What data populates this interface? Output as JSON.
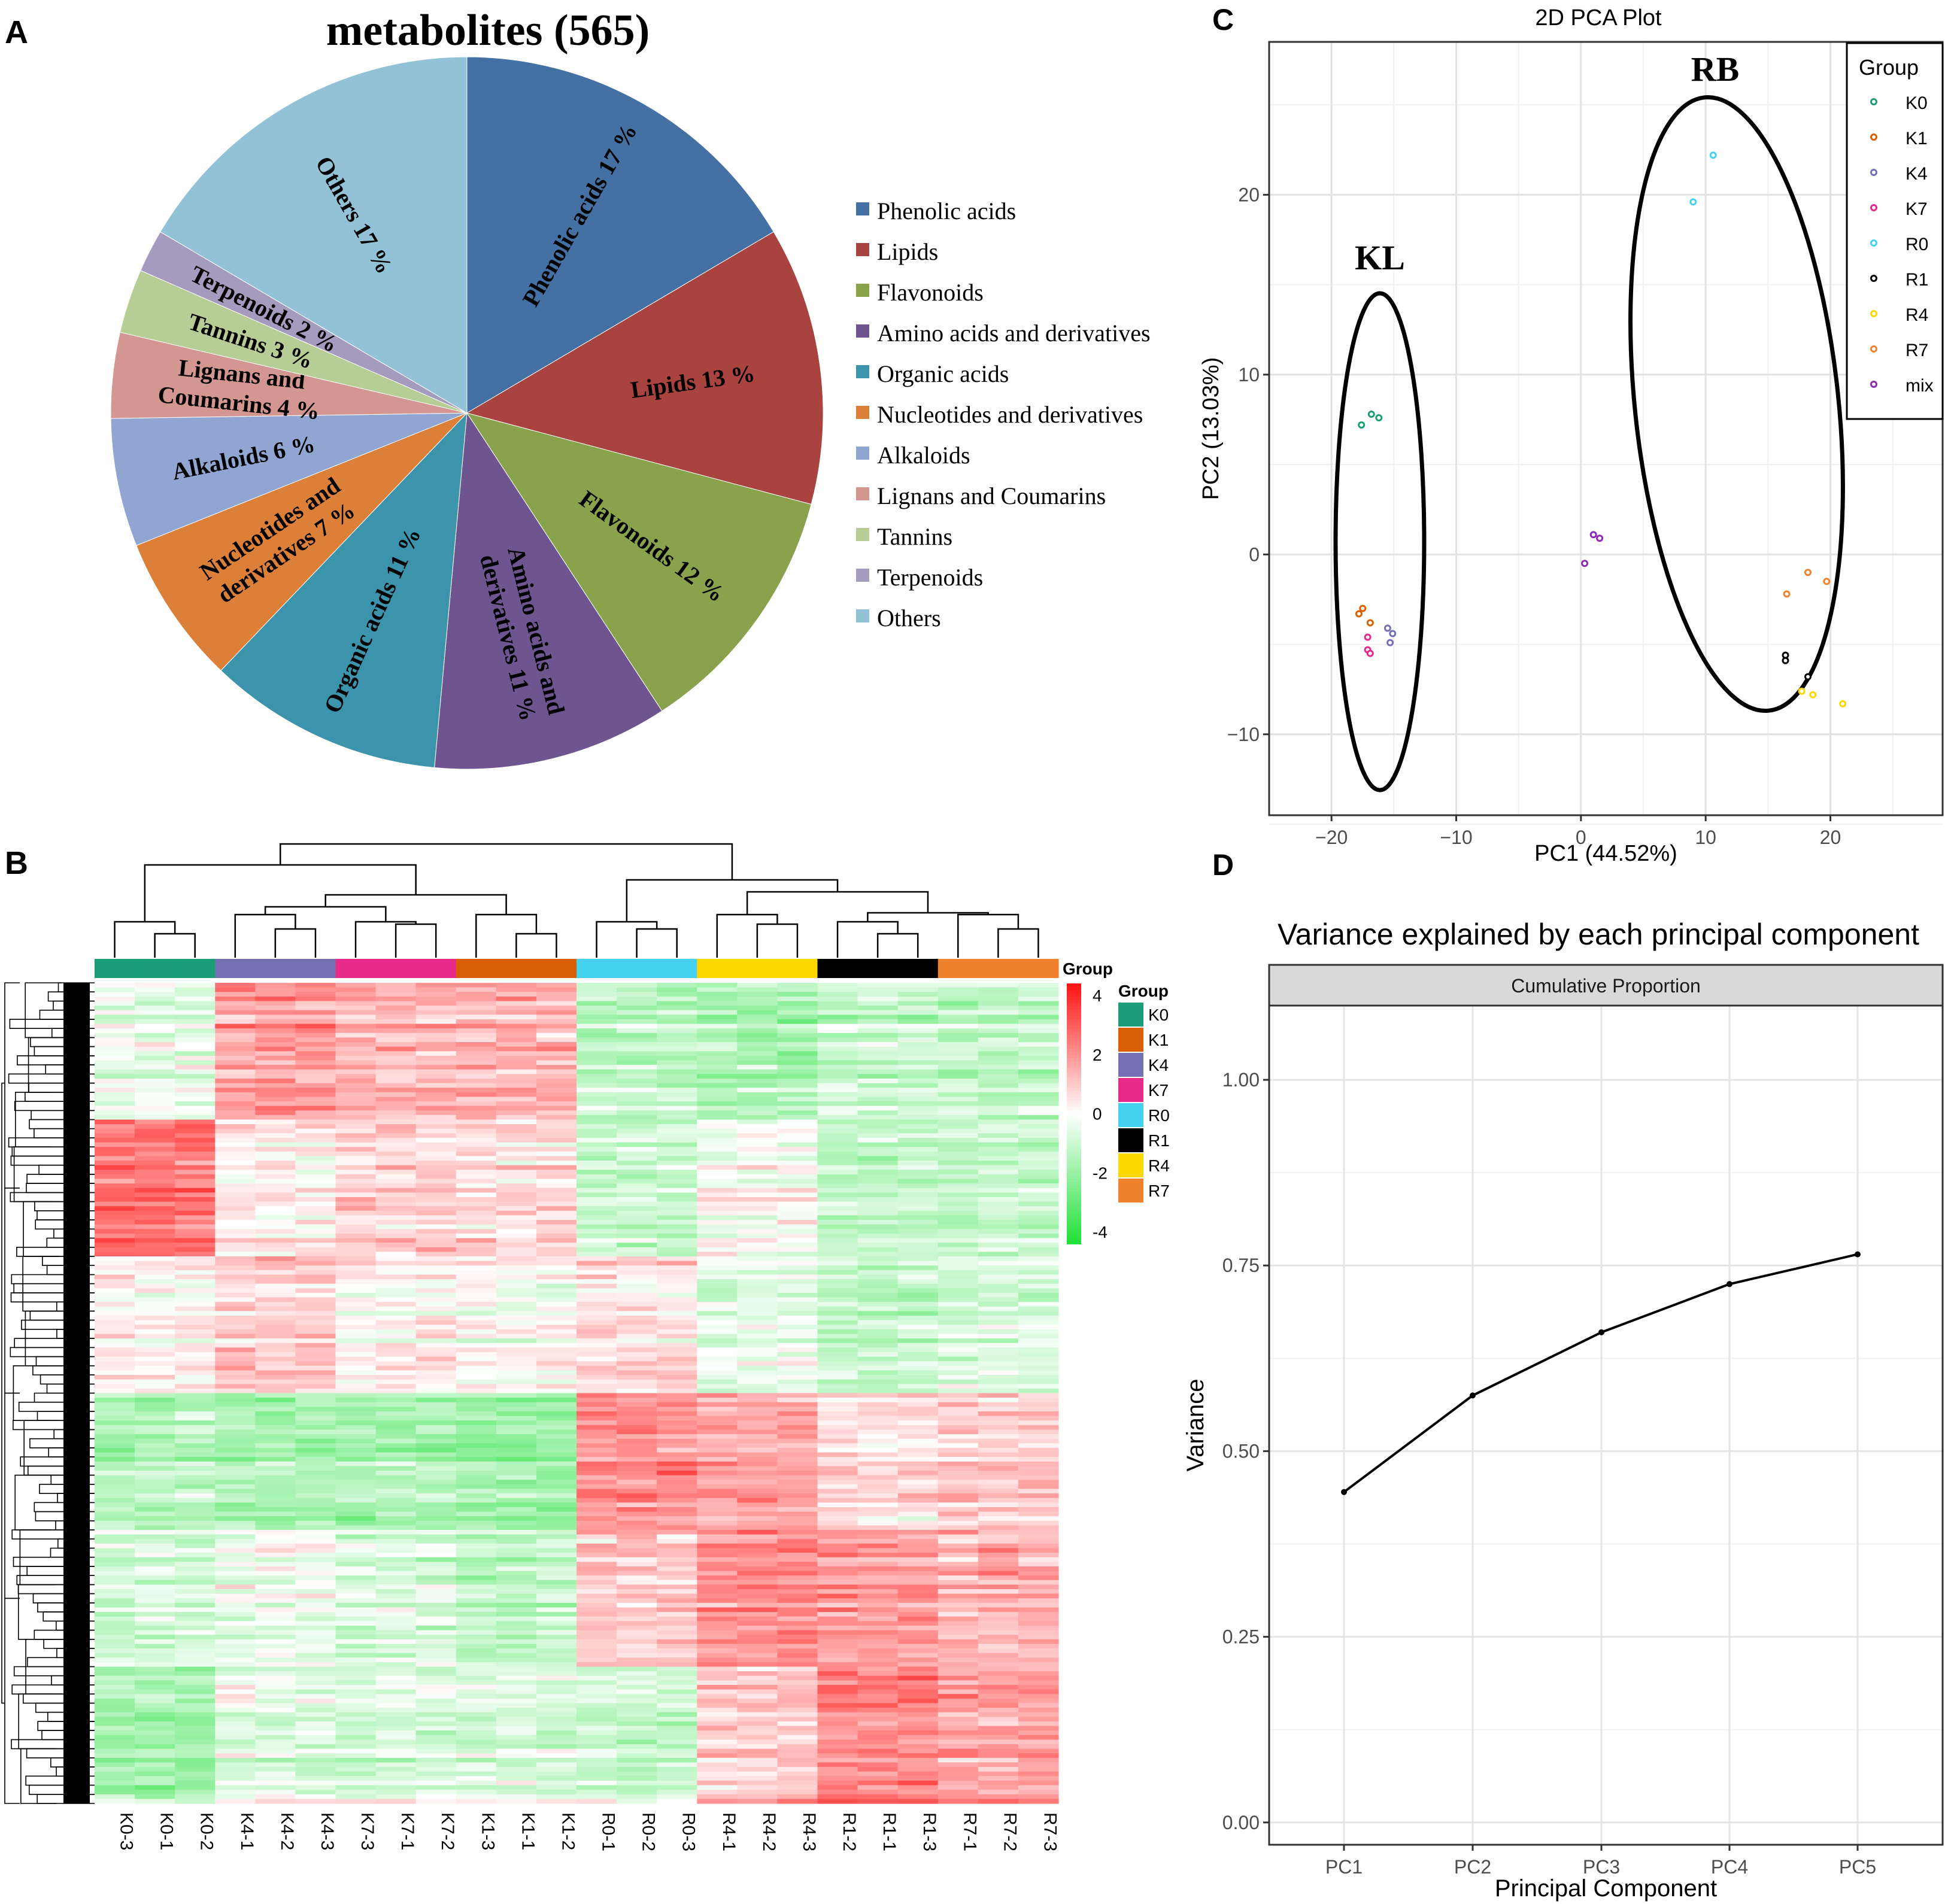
{
  "colors": {
    "phenolic": "#4470a4",
    "lipids": "#a9433f",
    "flavonoids": "#88a34c",
    "amino": "#6e5590",
    "organic": "#3b94ab",
    "nucleotides": "#dc7f39",
    "alkaloids": "#90a5d2",
    "lignans": "#d39690",
    "tannins": "#b6cd95",
    "terpenoids": "#a59bbf",
    "others": "#93c2d6",
    "K0": "#1b9e77",
    "K1": "#d95f02",
    "K4": "#7570b3",
    "K7": "#e7298a",
    "R0": "#44d2f0",
    "R1": "#000000",
    "R4": "#fdd800",
    "R7": "#f0822e",
    "mix": "#8a2bb3",
    "heat_hi": "#ff2020",
    "heat_mid": "#ffffff",
    "heat_lo": "#22e03a"
  },
  "chart_data": [
    {
      "panel_label": "A",
      "type": "pie",
      "title": "metabolites (565)",
      "slices": [
        {
          "name": "Phenolic acids",
          "value": 17,
          "label_lines": [
            "Phenolic acids 17 %"
          ],
          "color_key": "phenolic"
        },
        {
          "name": "Lipids",
          "value": 13,
          "label_lines": [
            "Lipids 13 %"
          ],
          "color_key": "lipids"
        },
        {
          "name": "Flavonoids",
          "value": 12,
          "label_lines": [
            "Flavonoids 12 %"
          ],
          "color_key": "flavonoids"
        },
        {
          "name": "Amino acids and derivatives",
          "value": 11,
          "label_lines": [
            "Amino acids and",
            "derivatives 11 %"
          ],
          "color_key": "amino"
        },
        {
          "name": "Organic acids",
          "value": 11,
          "label_lines": [
            "Organic acids 11 %"
          ],
          "color_key": "organic"
        },
        {
          "name": "Nucleotides and derivatives",
          "value": 7,
          "label_lines": [
            "Nucleotides and",
            "derivatives 7 %"
          ],
          "color_key": "nucleotides"
        },
        {
          "name": "Alkaloids",
          "value": 6,
          "label_lines": [
            "Alkaloids 6 %"
          ],
          "color_key": "alkaloids"
        },
        {
          "name": "Lignans and Coumarins",
          "value": 4,
          "label_lines": [
            "Lignans and",
            "Coumarins 4 %"
          ],
          "color_key": "lignans"
        },
        {
          "name": "Tannins",
          "value": 3,
          "label_lines": [
            "Tannins 3 %"
          ],
          "color_key": "tannins"
        },
        {
          "name": "Terpenoids",
          "value": 2,
          "label_lines": [
            "Terpenoids 2 %"
          ],
          "color_key": "terpenoids"
        },
        {
          "name": "Others",
          "value": 17,
          "label_lines": [
            "Others 17 %"
          ],
          "color_key": "others"
        }
      ],
      "legend": [
        "Phenolic acids",
        "Lipids",
        "Flavonoids",
        "Amino acids and derivatives",
        "Organic acids",
        "Nucleotides and derivatives",
        "Alkaloids",
        "Lignans and Coumarins",
        "Tannins",
        "Terpenoids",
        "Others"
      ]
    },
    {
      "panel_label": "B",
      "type": "heatmap",
      "columns": [
        "K0-3",
        "K0-1",
        "K0-2",
        "K4-1",
        "K4-2",
        "K4-3",
        "K7-3",
        "K7-1",
        "K7-2",
        "K1-3",
        "K1-1",
        "K1-2",
        "R0-1",
        "R0-2",
        "R0-3",
        "R4-1",
        "R4-2",
        "R4-3",
        "R1-2",
        "R1-1",
        "R1-3",
        "R7-1",
        "R7-2",
        "R7-3"
      ],
      "column_groups": [
        "K0",
        "K0",
        "K0",
        "K4",
        "K4",
        "K4",
        "K7",
        "K7",
        "K7",
        "K1",
        "K1",
        "K1",
        "R0",
        "R0",
        "R0",
        "R4",
        "R4",
        "R4",
        "R1",
        "R1",
        "R1",
        "R7",
        "R7",
        "R7"
      ],
      "color_scale": {
        "min": -4,
        "max": 4,
        "ticks": [
          "4",
          "2",
          "0",
          "-2",
          "-4"
        ]
      },
      "annotation_title": "Group",
      "legend_title": "Group",
      "legend_groups": [
        "K0",
        "K1",
        "K4",
        "K7",
        "R0",
        "R1",
        "R4",
        "R7"
      ],
      "n_rows": 565
    },
    {
      "panel_label": "C",
      "type": "scatter",
      "title": "2D PCA Plot",
      "xlabel": "PC1 (44.52%)",
      "ylabel": "PC2 (13.03%)",
      "xlim": [
        -25,
        29
      ],
      "ylim": [
        -14.5,
        28.5
      ],
      "xticks": [
        {
          "v": -20,
          "t": "−20"
        },
        {
          "v": -10,
          "t": "−10"
        },
        {
          "v": 0,
          "t": "0"
        },
        {
          "v": 10,
          "t": "10"
        },
        {
          "v": 20,
          "t": "20"
        }
      ],
      "yticks": [
        {
          "v": -10,
          "t": "−10"
        },
        {
          "v": 0,
          "t": "0"
        },
        {
          "v": 10,
          "t": "10"
        },
        {
          "v": 20,
          "t": "20"
        }
      ],
      "legend_title": "Group",
      "series": [
        {
          "name": "K0",
          "points": [
            [
              -17.6,
              7.2
            ],
            [
              -16.8,
              7.8
            ],
            [
              -16.2,
              7.6
            ]
          ]
        },
        {
          "name": "K1",
          "points": [
            [
              -17.8,
              -3.3
            ],
            [
              -17.5,
              -3.0
            ],
            [
              -16.9,
              -3.8
            ]
          ]
        },
        {
          "name": "K4",
          "points": [
            [
              -15.5,
              -4.1
            ],
            [
              -15.1,
              -4.4
            ],
            [
              -15.3,
              -4.9
            ]
          ]
        },
        {
          "name": "K7",
          "points": [
            [
              -17.1,
              -4.6
            ],
            [
              -17.1,
              -5.3
            ],
            [
              -16.9,
              -5.5
            ]
          ]
        },
        {
          "name": "R0",
          "points": [
            [
              9.0,
              19.6
            ],
            [
              10.6,
              22.2
            ]
          ]
        },
        {
          "name": "R1",
          "points": [
            [
              16.4,
              -5.6
            ],
            [
              16.4,
              -5.9
            ],
            [
              18.2,
              -6.8
            ]
          ]
        },
        {
          "name": "R4",
          "points": [
            [
              17.7,
              -7.6
            ],
            [
              18.6,
              -7.8
            ],
            [
              21.0,
              -8.3
            ]
          ]
        },
        {
          "name": "R7",
          "points": [
            [
              16.5,
              -2.2
            ],
            [
              18.2,
              -1.0
            ],
            [
              19.7,
              -1.5
            ]
          ]
        },
        {
          "name": "mix",
          "points": [
            [
              0.3,
              -0.5
            ],
            [
              1.0,
              1.1
            ],
            [
              1.5,
              0.9
            ]
          ]
        }
      ],
      "annotations": [
        "KL",
        "RB"
      ]
    },
    {
      "panel_label": "D",
      "type": "line",
      "title": "Variance explained by each principal component",
      "facet_label": "Cumulative Proportion",
      "xlabel": "Principal Component",
      "ylabel": "Variance",
      "categories": [
        "PC1",
        "PC2",
        "PC3",
        "PC4",
        "PC5"
      ],
      "values": [
        0.445,
        0.575,
        0.66,
        0.725,
        0.765
      ],
      "ylim": [
        -0.03,
        1.1
      ],
      "yticks": [
        {
          "v": 0,
          "t": "0.00"
        },
        {
          "v": 0.25,
          "t": "0.25"
        },
        {
          "v": 0.5,
          "t": "0.50"
        },
        {
          "v": 0.75,
          "t": "0.75"
        },
        {
          "v": 1,
          "t": "1.00"
        }
      ]
    }
  ]
}
